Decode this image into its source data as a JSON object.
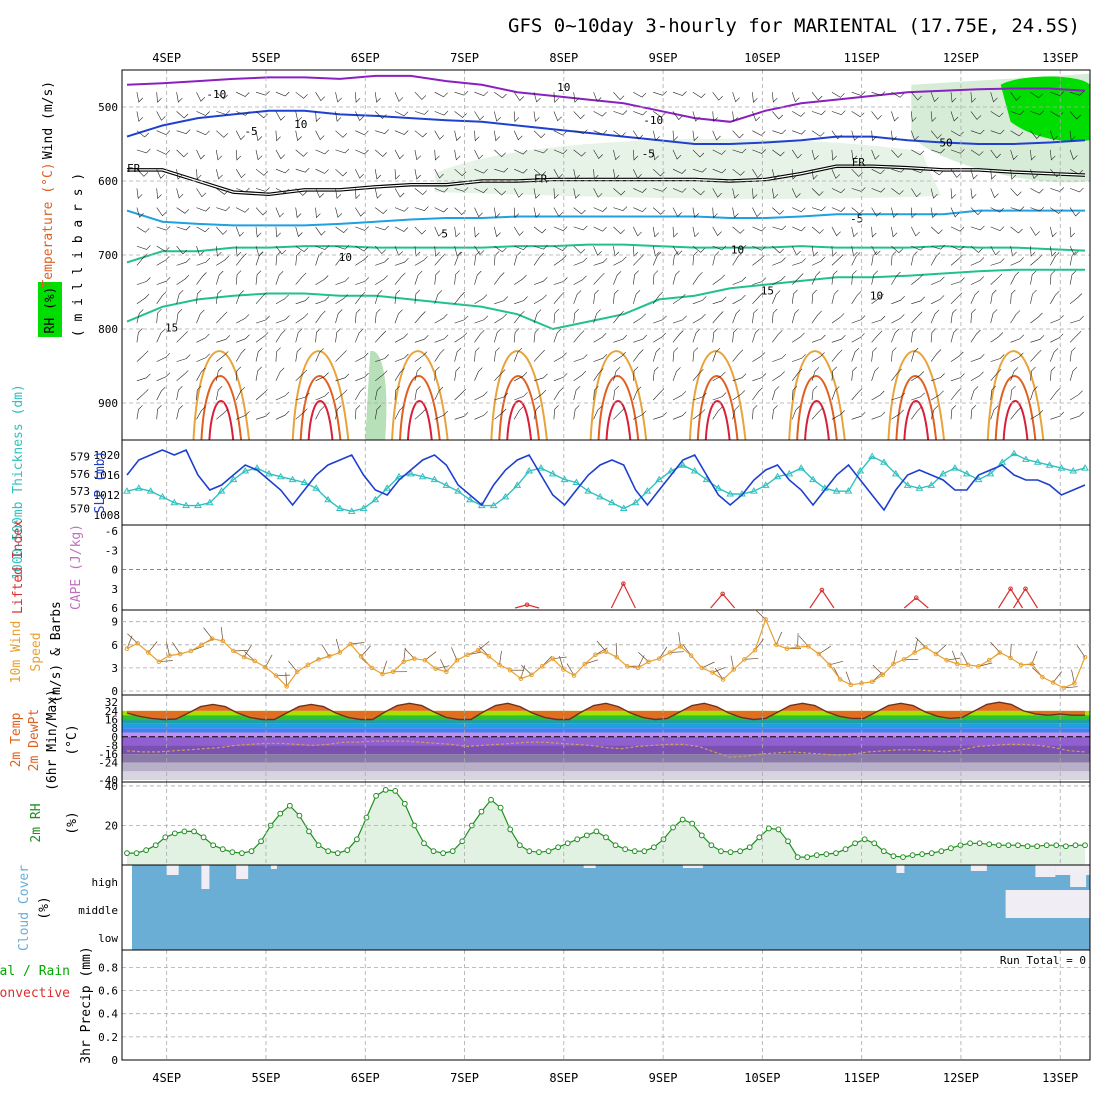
{
  "title": "GFS 0~10day 3-hourly for MARIENTAL (17.75E, 24.5S)",
  "run_total": "Run Total = 0",
  "colors": {
    "temp_warm": "#e8a33a",
    "temp_hot": "#e06020",
    "temp_red": "#d8203a",
    "temp_cold_cyan": "#1fa0e0",
    "temp_teal": "#20c090",
    "temp_blue": "#2040d0",
    "temp_purple": "#8a20c0",
    "rh": "#00dd00",
    "slp": "#1d3fcf",
    "thickness": "#30c0c0",
    "lifted_index": "#d83030",
    "cape": "#c070c0",
    "wind": "#e8a030",
    "rh2m": "#208f20",
    "cloud": "#6aaed6",
    "precip": "#00aa00"
  },
  "chart_data": [
    {
      "panel": "upper-air",
      "type": "contour",
      "dates": [
        "4SEP",
        "5SEP",
        "6SEP",
        "7SEP",
        "8SEP",
        "9SEP",
        "10SEP",
        "11SEP",
        "12SEP",
        "13SEP"
      ],
      "ylabel_parts": [
        "RH (%)",
        "Temperature (°C)",
        "Wind (m/s)"
      ],
      "ylabel_units": "( m i l l i b a r s )",
      "yticks": [
        "500",
        "600",
        "700",
        "800",
        "900"
      ],
      "ylim": [
        450,
        950
      ],
      "freezing_label": "FR",
      "contour_labels": [
        "-10",
        "-10",
        "-5",
        "-5",
        "-5",
        "5",
        "10",
        "10",
        "15",
        "15",
        "10",
        "10",
        "10",
        "50"
      ],
      "isotherms": [
        {
          "level_c": -10,
          "p": [
            470,
            468,
            465,
            462,
            460,
            460,
            462,
            458,
            458,
            465,
            470,
            480,
            485,
            490,
            495,
            505,
            515,
            520,
            505,
            495,
            490,
            485,
            480,
            478,
            476,
            475,
            475,
            478
          ]
        },
        {
          "level_c": -5,
          "p": [
            540,
            525,
            515,
            510,
            505,
            505,
            510,
            512,
            515,
            518,
            520,
            525,
            530,
            535,
            540,
            545,
            550,
            550,
            548,
            545,
            540,
            540,
            545,
            548,
            550,
            550,
            548,
            545
          ]
        },
        {
          "level_c": 0,
          "p": [
            585,
            585,
            600,
            615,
            618,
            612,
            612,
            608,
            605,
            605,
            600,
            600,
            598,
            598,
            598,
            598,
            598,
            600,
            598,
            590,
            580,
            580,
            582,
            585,
            585,
            588,
            590,
            592
          ]
        },
        {
          "level_c": 5,
          "p": [
            640,
            655,
            658,
            660,
            660,
            660,
            658,
            655,
            652,
            650,
            650,
            648,
            648,
            648,
            648,
            648,
            648,
            650,
            650,
            648,
            645,
            645,
            645,
            645,
            640,
            640,
            640,
            640
          ]
        },
        {
          "level_c": 10,
          "p": [
            710,
            695,
            695,
            690,
            690,
            688,
            688,
            690,
            690,
            690,
            690,
            688,
            688,
            686,
            686,
            688,
            690,
            690,
            690,
            688,
            690,
            690,
            690,
            688,
            690,
            690,
            692,
            694
          ]
        },
        {
          "level_c": 15,
          "p": [
            790,
            770,
            760,
            755,
            752,
            752,
            755,
            755,
            760,
            765,
            770,
            780,
            800,
            790,
            780,
            760,
            755,
            745,
            740,
            735,
            730,
            730,
            728,
            725,
            722,
            720,
            720,
            720
          ]
        }
      ],
      "diurnal_plumes": [
        4.55,
        5.55,
        6.55,
        7.55,
        8.55,
        9.55,
        10.55,
        11.55,
        12.55
      ]
    },
    {
      "panel": "slp-thickness",
      "type": "line",
      "ylabel_left": "1000-500mb Thickness (dm)",
      "ylabel_right": "SLP (mb)",
      "thickness_ticks": [
        "579",
        "576",
        "573",
        "570"
      ],
      "slp_ticks": [
        "1020",
        "1016",
        "1012",
        "1008"
      ],
      "series": [
        {
          "name": "SLP (mb)",
          "axis": "slp",
          "ylim": [
            1007,
            1022
          ],
          "values": [
            1016,
            1019,
            1020,
            1021,
            1020,
            1021,
            1016,
            1013,
            1014,
            1016,
            1018,
            1017,
            1015,
            1013,
            1010,
            1013,
            1016,
            1018,
            1019,
            1020,
            1016,
            1013,
            1012,
            1015,
            1017,
            1019,
            1020,
            1018,
            1014,
            1012,
            1010,
            1014,
            1017,
            1019,
            1020,
            1016,
            1012,
            1010,
            1013,
            1016,
            1018,
            1019,
            1018,
            1013,
            1010,
            1013,
            1016,
            1019,
            1020,
            1016,
            1012,
            1010,
            1012,
            1015,
            1017,
            1018,
            1015,
            1013,
            1010,
            1013,
            1016,
            1018,
            1015,
            1012,
            1009,
            1013,
            1016,
            1017,
            1016,
            1015,
            1013,
            1013,
            1016,
            1017,
            1018,
            1016,
            1015,
            1015,
            1014,
            1012,
            1013,
            1014
          ]
        },
        {
          "name": "1000-500mb Thickness (dm)",
          "axis": "thickness",
          "ylim": [
            568,
            581
          ],
          "values": [
            573,
            573.5,
            573,
            572,
            571,
            570.5,
            570.5,
            571,
            573,
            575,
            576.5,
            577,
            576,
            575.5,
            575,
            574.5,
            573.5,
            571.5,
            570,
            569.5,
            570,
            571.5,
            573.5,
            575.5,
            576,
            575.5,
            575,
            574,
            573,
            571.5,
            570.5,
            570.5,
            572,
            574,
            576.5,
            577,
            576,
            575,
            574.5,
            573,
            572,
            571,
            570,
            571,
            573,
            575,
            576.5,
            577.5,
            576.5,
            575,
            573.5,
            572.5,
            572.5,
            573,
            574,
            575.5,
            576,
            577,
            575,
            573.5,
            573,
            573,
            576.5,
            579,
            578,
            576,
            574,
            573.5,
            574,
            576,
            577,
            576,
            575,
            576,
            578,
            579.5,
            578.5,
            578,
            577.5,
            577,
            576.5,
            577
          ]
        }
      ]
    },
    {
      "panel": "lifted-index-cape",
      "type": "line",
      "ylabel_left": "Lifted Index",
      "ylabel_right": "CAPE (J/kg)",
      "yticks": [
        "-6",
        "-3",
        "0",
        "3",
        "6"
      ],
      "ylim": [
        -6,
        6
      ],
      "lifted_index_peaks": [
        {
          "x": 7.63,
          "value": 5.5
        },
        {
          "x": 8.6,
          "value": 2.2
        },
        {
          "x": 9.6,
          "value": 3.8
        },
        {
          "x": 10.6,
          "value": 3.2
        },
        {
          "x": 11.55,
          "value": 4.4
        },
        {
          "x": 12.5,
          "value": 3.0
        },
        {
          "x": 12.65,
          "value": 3.0
        }
      ]
    },
    {
      "panel": "10m-wind",
      "type": "line",
      "ylabel_parts": [
        "10m Wind",
        "Speed",
        "(m/s) & Barbs"
      ],
      "yticks": [
        "0",
        "3",
        "6",
        "9"
      ],
      "ylim": [
        0,
        10
      ],
      "series": [
        {
          "name": "Speed",
          "values": [
            5.5,
            6.2,
            5.0,
            3.8,
            4.6,
            4.8,
            5.2,
            6.0,
            6.8,
            6.5,
            5.2,
            4.4,
            3.9,
            3.1,
            2.0,
            0.6,
            2.5,
            3.4,
            4.1,
            4.5,
            5.0,
            6.1,
            4.5,
            3.0,
            2.2,
            2.5,
            3.8,
            4.2,
            4.0,
            2.9,
            2.5,
            4.0,
            4.7,
            5.3,
            4.5,
            3.4,
            2.7,
            1.6,
            2.1,
            3.2,
            4.2,
            2.8,
            2.0,
            3.5,
            4.7,
            5.1,
            4.4,
            3.2,
            3.0,
            3.8,
            4.2,
            5.0,
            5.8,
            4.6,
            3.0,
            2.4,
            1.5,
            2.8,
            4.1,
            5.3,
            9.3,
            6.0,
            5.5,
            5.7,
            5.8,
            4.8,
            3.4,
            1.5,
            0.8,
            1.0,
            1.2,
            2.1,
            3.5,
            4.1,
            5.0,
            5.7,
            4.8,
            4.0,
            3.5,
            3.4,
            3.2,
            4.0,
            5.0,
            4.3,
            3.4,
            3.5,
            1.8,
            1.1,
            0.4,
            1.0,
            4.4
          ]
        }
      ]
    },
    {
      "panel": "2m-temp",
      "type": "area",
      "ylabel_parts": [
        "2m Temp",
        "2m DewPt",
        "(6hr Min/Max)",
        "(°C)"
      ],
      "yticks": [
        "32",
        "24",
        "16",
        "8",
        "0",
        "-8",
        "-16",
        "-24",
        "-40"
      ],
      "ylim": [
        -40,
        35
      ],
      "series": [
        {
          "name": "2m Temp",
          "values": [
            22,
            19,
            17,
            16,
            16.5,
            22,
            28,
            30,
            28,
            22,
            18,
            16,
            16,
            22,
            28,
            30,
            28,
            22,
            18,
            16,
            16,
            23,
            29,
            31,
            29,
            23,
            18,
            16,
            16,
            23,
            29,
            31,
            28,
            22,
            18,
            16,
            16,
            23,
            29,
            31,
            28,
            22,
            18,
            16,
            17,
            23,
            29,
            31,
            28,
            22,
            18,
            16,
            17,
            23,
            29,
            31,
            29,
            23,
            19,
            17,
            17,
            23,
            29,
            31,
            29,
            23,
            19,
            17,
            18,
            24,
            30,
            32,
            30,
            24,
            21,
            20,
            21,
            20,
            20
          ]
        },
        {
          "name": "2m DewPt",
          "values": [
            -13,
            -14,
            -14,
            -13,
            -12,
            -11,
            -10,
            -8,
            -7,
            -6,
            -6,
            -7,
            -8,
            -7,
            -5,
            -5,
            -4,
            -4,
            -4,
            -5,
            -6,
            -7,
            -9,
            -8,
            -7,
            -6,
            -5,
            -5,
            -6,
            -7,
            -8,
            -10,
            -11,
            -9,
            -8,
            -7,
            -7,
            -9,
            -14,
            -19,
            -18,
            -16,
            -15,
            -14,
            -15,
            -16,
            -17,
            -16,
            -14,
            -13,
            -12,
            -12,
            -13,
            -14,
            -12,
            -9,
            -8,
            -7,
            -7,
            -8,
            -10,
            -13,
            -14
          ]
        }
      ]
    },
    {
      "panel": "2m-rh",
      "type": "area",
      "ylabel": "2m RH",
      "ylabel_units": "(%)",
      "yticks": [
        "20",
        "40"
      ],
      "ylim": [
        0,
        42
      ],
      "series": [
        {
          "name": "2m RH",
          "values": [
            6,
            6,
            7.5,
            10,
            14,
            16,
            17,
            17,
            14,
            10,
            8,
            6.5,
            6,
            7,
            12,
            20,
            26,
            30,
            25,
            17,
            10,
            7,
            6,
            7.5,
            13,
            24,
            35,
            38,
            37.5,
            31,
            20,
            11,
            7,
            6,
            7,
            12,
            20,
            27,
            33,
            29,
            18,
            10,
            7,
            6.5,
            7,
            9,
            11,
            13,
            15,
            17,
            14,
            10,
            8,
            7,
            7,
            9,
            13,
            19,
            23,
            21,
            15,
            10,
            7,
            6.5,
            7,
            9,
            14,
            18.5,
            18,
            12,
            4,
            4,
            5,
            5.5,
            6,
            8,
            11,
            13,
            11,
            7,
            4.5,
            4,
            5,
            5.5,
            6,
            7,
            8.5,
            10,
            11,
            11,
            10.5,
            10,
            10,
            10,
            9.5,
            9.5,
            10,
            10,
            9.5,
            10,
            10
          ]
        }
      ]
    },
    {
      "panel": "cloud-cover",
      "type": "area",
      "ylabel": "Cloud Cover",
      "ylabel_units": "(%)",
      "levels": [
        "high",
        "middle",
        "low"
      ]
    },
    {
      "panel": "precip",
      "type": "bar",
      "ylabel_parts": [
        "Total / Rain",
        "Convective"
      ],
      "ylabel_units": "3hr Precip (mm)",
      "yticks": [
        "0",
        "0.2",
        "0.4",
        "0.6",
        "0.8"
      ],
      "ylim": [
        0,
        0.95
      ],
      "values": []
    }
  ]
}
